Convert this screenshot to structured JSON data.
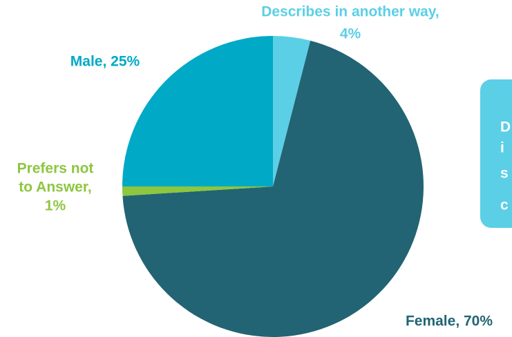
{
  "chart_data": {
    "type": "pie",
    "labels": [
      [
        "Describes in another way,",
        "4%"
      ],
      [
        "Female, 70%"
      ],
      [
        "Prefers not",
        "to Answer,",
        "1%"
      ],
      [
        "Male, 25%"
      ]
    ],
    "values": [
      4,
      70,
      1,
      25
    ],
    "colors": [
      "#5bcfe6",
      "#226473",
      "#8dc63f",
      "#00a9c5"
    ],
    "start_angle": 90,
    "direction": "clockwise"
  },
  "callout": {
    "lines": [
      "D",
      "i",
      "s",
      "c"
    ]
  }
}
